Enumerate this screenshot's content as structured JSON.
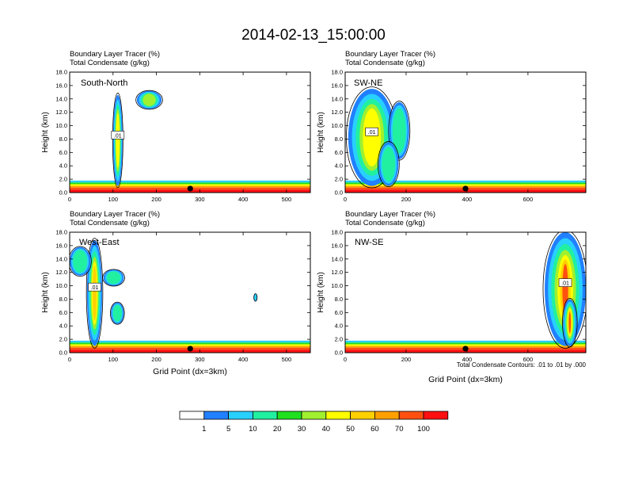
{
  "figure": {
    "title": "2014-02-13_15:00:00",
    "footnote": "Total Condensate Contours: .01 to .01 by .000"
  },
  "colorbar": {
    "colors": [
      "#ffffff",
      "#2080ff",
      "#28d0ff",
      "#20f0a0",
      "#20e020",
      "#a0f030",
      "#ffff00",
      "#ffd000",
      "#ffa000",
      "#ff5010",
      "#ff1010"
    ],
    "labels": [
      "1",
      "5",
      "10",
      "20",
      "30",
      "40",
      "50",
      "60",
      "70",
      "100"
    ]
  },
  "chart_data": [
    {
      "type": "heatmap",
      "name": "South-North",
      "label": "South-North",
      "title_lines": [
        "Boundary Layer Tracer   (%)",
        "Total Condensate   (g/kg)"
      ],
      "xlabel": "",
      "ylabel": "Height (km)",
      "xlim": [
        0,
        555
      ],
      "ylim": [
        0,
        18
      ],
      "xticks": [
        0,
        100,
        200,
        300,
        400,
        500
      ],
      "xtick_labels": [
        "0",
        "100",
        "200",
        "300",
        "400",
        "500"
      ],
      "yticks": [
        0,
        2,
        4,
        6,
        8,
        10,
        12,
        14,
        16,
        18
      ],
      "ytick_labels": [
        "0.0",
        "2.0",
        "4.0",
        "6.0",
        "8.0",
        "10.0",
        "12.0",
        "14.0",
        "16.0",
        "18.0"
      ],
      "contour_label": ".01",
      "marker_x": 278,
      "plumes": [
        {
          "x0": 100,
          "x1": 122,
          "y0": 1.0,
          "y1": 14.6,
          "peak": 55
        },
        {
          "x0": 155,
          "x1": 212,
          "y0": 12.5,
          "y1": 15.2,
          "peak": 42
        }
      ]
    },
    {
      "type": "heatmap",
      "name": "SW-NE",
      "label": "SW-NE",
      "title_lines": [
        "Boundary Layer Tracer   (%)",
        "Total Condensate   (g/kg)"
      ],
      "xlabel": "",
      "ylabel": "Height (km)",
      "xlim": [
        0,
        790
      ],
      "ylim": [
        0,
        18
      ],
      "xticks": [
        0,
        200,
        400,
        600
      ],
      "xtick_labels": [
        "0",
        "200",
        "400",
        "600"
      ],
      "yticks": [
        0,
        2,
        4,
        6,
        8,
        10,
        12,
        14,
        16,
        18
      ],
      "ytick_labels": [
        "0.0",
        "2.0",
        "4.0",
        "6.0",
        "8.0",
        "10.0",
        "12.0",
        "14.0",
        "16.0",
        "18.0"
      ],
      "contour_label": ".01",
      "marker_x": 395,
      "plumes": [
        {
          "x0": 10,
          "x1": 165,
          "y0": 1.0,
          "y1": 15.5,
          "peak": 45
        },
        {
          "x0": 145,
          "x1": 210,
          "y0": 5.0,
          "y1": 13.5,
          "peak": 28
        },
        {
          "x0": 110,
          "x1": 175,
          "y0": 1.0,
          "y1": 7.5,
          "peak": 20
        }
      ]
    },
    {
      "type": "heatmap",
      "name": "West-East",
      "label": "West-East",
      "title_lines": [
        "Boundary Layer Tracer   (%)",
        "Total Condensate   (g/kg)"
      ],
      "xlabel": "Grid Point (dx=3km)",
      "ylabel": "Height (km)",
      "xlim": [
        0,
        555
      ],
      "ylim": [
        0,
        18
      ],
      "xticks": [
        0,
        100,
        200,
        300,
        400,
        500
      ],
      "xtick_labels": [
        "0",
        "100",
        "200",
        "300",
        "400",
        "500"
      ],
      "yticks": [
        0,
        2,
        4,
        6,
        8,
        10,
        12,
        14,
        16,
        18
      ],
      "ytick_labels": [
        "0.0",
        "2.0",
        "4.0",
        "6.0",
        "8.0",
        "10.0",
        "12.0",
        "14.0",
        "16.0",
        "18.0"
      ],
      "contour_label": ".01",
      "marker_x": 278,
      "plumes": [
        {
          "x0": 40,
          "x1": 75,
          "y0": 1.0,
          "y1": 16.8,
          "peak": 65
        },
        {
          "x0": 0,
          "x1": 48,
          "y0": 11.5,
          "y1": 15.8,
          "peak": 30
        },
        {
          "x0": 78,
          "x1": 125,
          "y0": 10.0,
          "y1": 12.4,
          "peak": 22
        },
        {
          "x0": 95,
          "x1": 125,
          "y0": 4.3,
          "y1": 7.5,
          "peak": 18
        },
        {
          "x0": 425,
          "x1": 432,
          "y0": 7.7,
          "y1": 8.8,
          "peak": 8
        }
      ]
    },
    {
      "type": "heatmap",
      "name": "NW-SE",
      "label": "NW-SE",
      "title_lines": [
        "Boundary Layer Tracer   (%)",
        "Total Condensate   (g/kg)"
      ],
      "xlabel": "Grid Point (dx=3km)",
      "ylabel": "Height (km)",
      "xlim": [
        0,
        790
      ],
      "ylim": [
        0,
        18
      ],
      "xticks": [
        0,
        200,
        400,
        600
      ],
      "xtick_labels": [
        "0",
        "200",
        "400",
        "600"
      ],
      "yticks": [
        0,
        2,
        4,
        6,
        8,
        10,
        12,
        14,
        16,
        18
      ],
      "ytick_labels": [
        "0.0",
        "2.0",
        "4.0",
        "6.0",
        "8.0",
        "10.0",
        "12.0",
        "14.0",
        "16.0",
        "18.0"
      ],
      "contour_label": ".01",
      "marker_x": 395,
      "plumes": [
        {
          "x0": 655,
          "x1": 790,
          "y0": 1.0,
          "y1": 18.0,
          "peak": 85
        },
        {
          "x0": 715,
          "x1": 760,
          "y0": 1.0,
          "y1": 8.0,
          "peak": 75
        }
      ]
    }
  ]
}
